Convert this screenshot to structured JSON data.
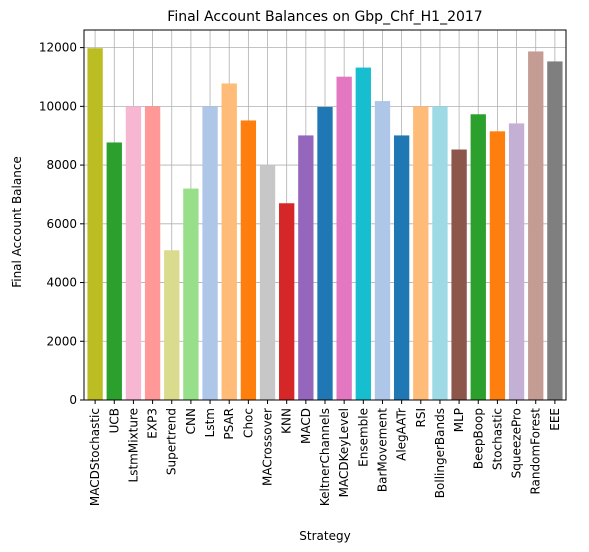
{
  "chart_data": {
    "type": "bar",
    "title": "Final Account Balances on Gbp_Chf_H1_2017",
    "xlabel": "Strategy",
    "ylabel": "Final Account Balance",
    "ylim": [
      0,
      12600
    ],
    "yticks": [
      0,
      2000,
      4000,
      6000,
      8000,
      10000,
      12000
    ],
    "grid": true,
    "categories": [
      "MACDStochastic",
      "UCB",
      "LstmMixture",
      "EXP3",
      "Supertrend",
      "CNN",
      "Lstm",
      "PSAR",
      "Choc",
      "MACrossover",
      "KNN",
      "MACD",
      "KeltnerChannels",
      "MACDKeyLevel",
      "Ensemble",
      "BarMovement",
      "AlegAATr",
      "RSI",
      "BollingerBands",
      "MLP",
      "BeepBoop",
      "Stochastic",
      "SqueezePro",
      "RandomForest",
      "EEE"
    ],
    "values": [
      11980,
      8770,
      10000,
      10000,
      5100,
      7200,
      10000,
      10780,
      9520,
      8000,
      6700,
      9010,
      9980,
      11010,
      11320,
      10180,
      9010,
      10000,
      10000,
      8530,
      9730,
      9150,
      9420,
      11870,
      11530
    ],
    "colors": [
      "#bcbd22",
      "#2ca02c",
      "#f7b6d2",
      "#ff9896",
      "#dbdb8d",
      "#98df8a",
      "#aec7e8",
      "#ffbb78",
      "#ff7f0e",
      "#c7c7c7",
      "#d62728",
      "#9467bd",
      "#1f77b4",
      "#e377c2",
      "#17becf",
      "#aec7e8",
      "#1f77b4",
      "#ffbb78",
      "#9edae5",
      "#8c564b",
      "#2ca02c",
      "#ff7f0e",
      "#c5b0d5",
      "#c49c94",
      "#7f7f7f"
    ]
  }
}
